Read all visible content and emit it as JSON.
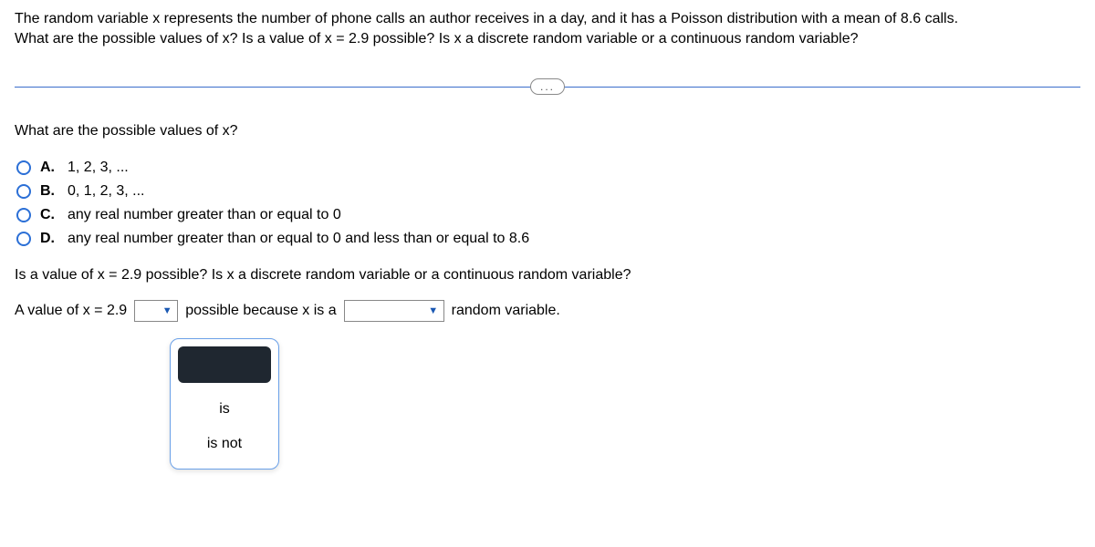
{
  "question": {
    "line1": "The random variable x represents the number of phone calls an author receives in a day, and it has a Poisson distribution with a mean of 8.6 calls.",
    "line2": "What are the possible values of x? Is a value of x = 2.9 possible? Is x a discrete random variable or a continuous random variable?"
  },
  "divider_label": "...",
  "section1": {
    "prompt": "What are the possible values of x?",
    "options": [
      {
        "letter": "A.",
        "text": "1, 2, 3, ..."
      },
      {
        "letter": "B.",
        "text": "0, 1, 2, 3, ..."
      },
      {
        "letter": "C.",
        "text": "any real number greater than or equal to 0"
      },
      {
        "letter": "D.",
        "text": "any real number greater than or equal to 0 and less than or equal to 8.6"
      }
    ]
  },
  "section2": {
    "prompt": "Is a value of x = 2.9 possible? Is x a discrete random variable or a continuous random variable?",
    "sentence": {
      "part1": "A value of x = 2.9",
      "dropdown1_value": "",
      "part2": "possible because x is a",
      "dropdown2_value": "",
      "part3": "random variable."
    }
  },
  "popup": {
    "items": [
      "is",
      "is not"
    ]
  },
  "colors": {
    "radio_border": "#2b6fd6",
    "divider": "#3a6ecb",
    "caret": "#1a58b3",
    "popup_border": "#6aa0e8",
    "popup_header_bg": "#1f2730"
  }
}
